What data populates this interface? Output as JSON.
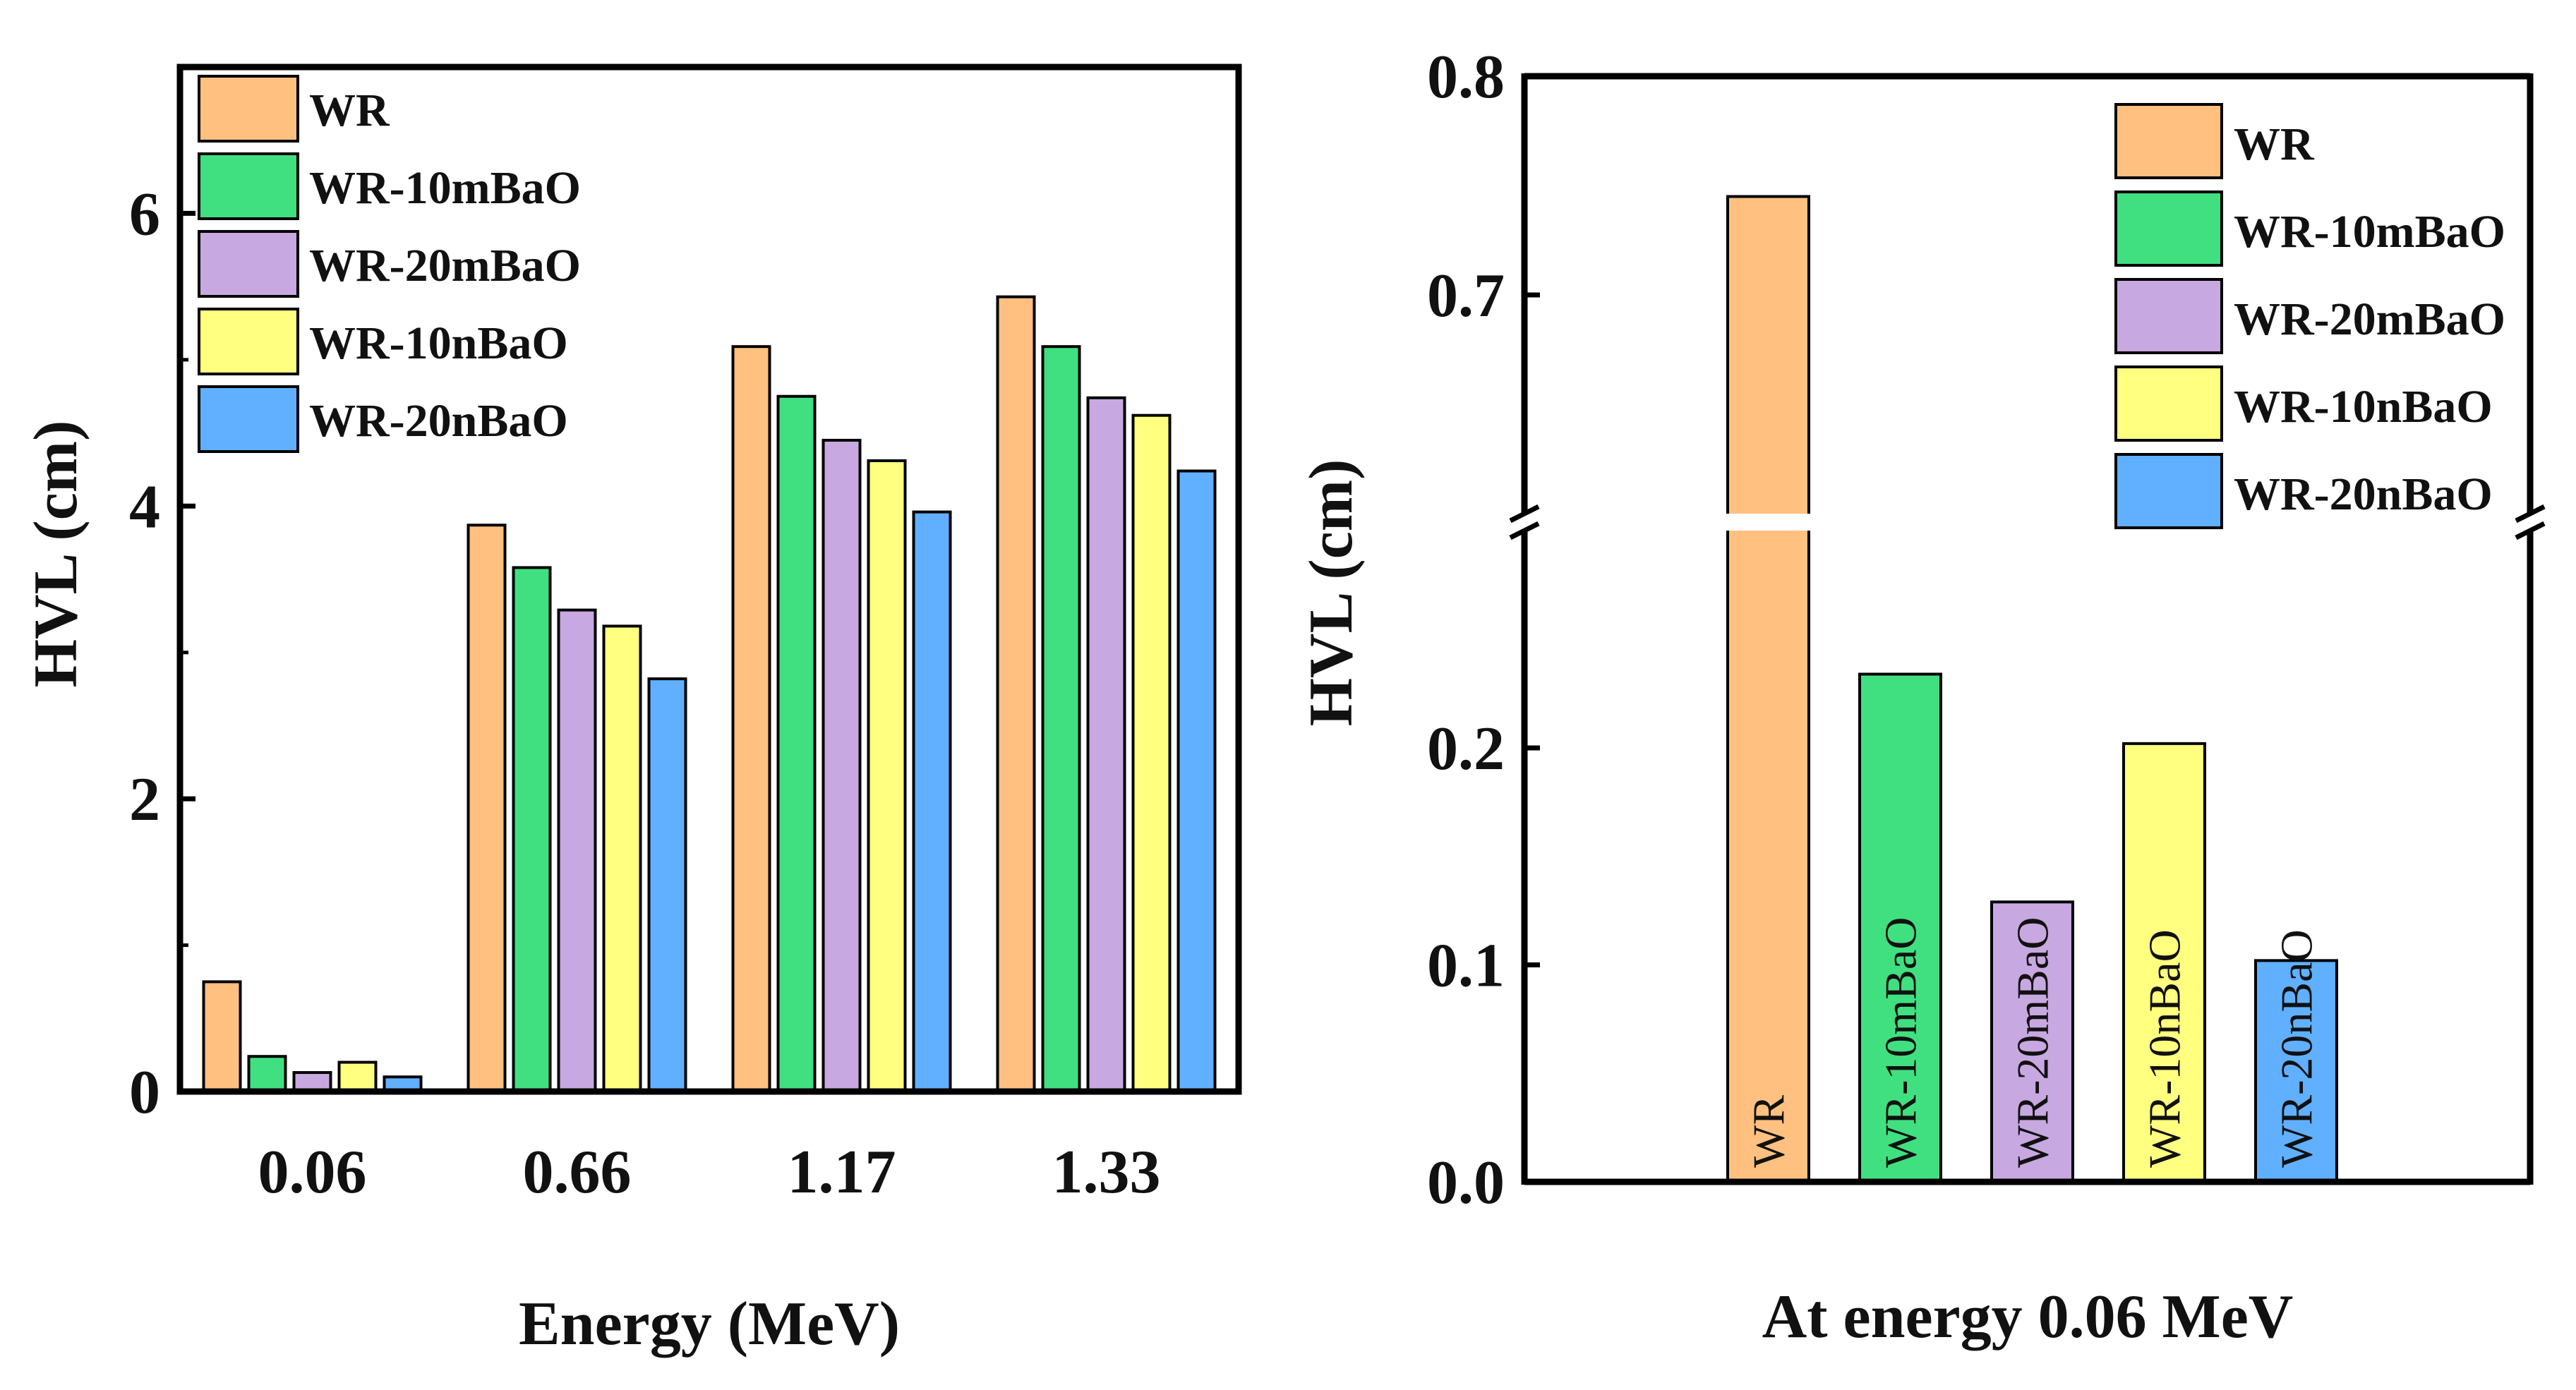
{
  "chart_data": [
    {
      "type": "bar",
      "title": "",
      "xlabel": "Energy (MeV)",
      "ylabel": "HVL (cm)",
      "categories": [
        "0.06",
        "0.66",
        "1.17",
        "1.33"
      ],
      "ylim": [
        0,
        7
      ],
      "yticks": [
        "0",
        "2",
        "4",
        "6"
      ],
      "grid": false,
      "legend_position": "top-left",
      "series": [
        {
          "name": "WR",
          "color": "#FFC080",
          "values": [
            0.75,
            3.87,
            5.09,
            5.43
          ]
        },
        {
          "name": "WR-10mBaO",
          "color": "#40E080",
          "values": [
            0.24,
            3.58,
            4.75,
            5.09
          ]
        },
        {
          "name": "WR-20mBaO",
          "color": "#C8A8E0",
          "values": [
            0.13,
            3.29,
            4.45,
            4.74
          ]
        },
        {
          "name": "WR-10nBaO",
          "color": "#FFFF80",
          "values": [
            0.2,
            3.18,
            4.31,
            4.62
          ]
        },
        {
          "name": "WR-20nBaO",
          "color": "#60B0FF",
          "values": [
            0.1,
            2.82,
            3.96,
            4.24
          ]
        }
      ]
    },
    {
      "type": "bar",
      "title": "",
      "xlabel": "At energy 0.06 MeV",
      "ylabel": "HVL (cm)",
      "categories": [
        "WR",
        "WR-10mBaO",
        "WR-20mBaO",
        "WR-10nBaO",
        "WR-20nBaO"
      ],
      "values": [
        0.745,
        0.234,
        0.129,
        0.202,
        0.102
      ],
      "colors": [
        "#FFC080",
        "#40E080",
        "#C8A8E0",
        "#FFFF80",
        "#60B0FF"
      ],
      "axis_break": [
        0.3,
        0.6
      ],
      "ylim": [
        0,
        0.8
      ],
      "yticks": [
        "0.0",
        "0.1",
        "0.2",
        "0.7",
        "0.8"
      ],
      "grid": false,
      "legend_position": "top-right",
      "legend": [
        "WR",
        "WR-10mBaO",
        "WR-20mBaO",
        "WR-10nBaO",
        "WR-20nBaO"
      ]
    }
  ]
}
